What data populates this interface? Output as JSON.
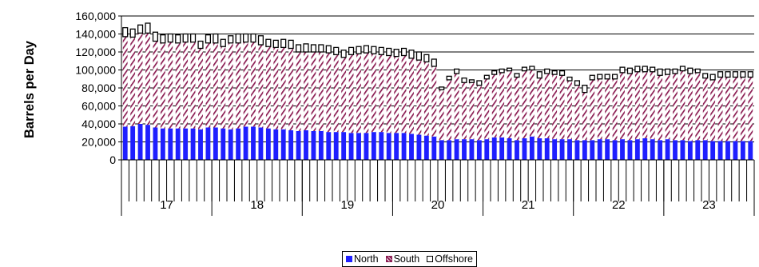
{
  "chart_data": {
    "type": "bar",
    "stacked": true,
    "ylabel": "Barrels per Day",
    "ylim": [
      0,
      160000
    ],
    "yticks": [
      "0",
      "20,000",
      "40,000",
      "60,000",
      "80,000",
      "100,000",
      "120,000",
      "140,000",
      "160,000"
    ],
    "grid": true,
    "legend_position": "bottom",
    "year_labels": [
      "17",
      "18",
      "19",
      "20",
      "21",
      "22",
      "23"
    ],
    "periods_per_year": 12,
    "series": [
      {
        "name": "North",
        "color": "#1f1fff",
        "pattern": "solid",
        "values": [
          37000,
          37500,
          40000,
          39000,
          36000,
          35000,
          35000,
          35000,
          35000,
          35000,
          34000,
          36000,
          36000,
          35000,
          34000,
          35000,
          37000,
          37000,
          36000,
          35000,
          34000,
          34000,
          33000,
          32000,
          33000,
          32000,
          32000,
          31000,
          31000,
          31000,
          30000,
          30000,
          30000,
          31000,
          31000,
          30000,
          30000,
          30000,
          29000,
          28000,
          27000,
          26000,
          22000,
          22000,
          23000,
          23000,
          23000,
          22000,
          23000,
          25000,
          25000,
          24000,
          22000,
          24000,
          26000,
          24000,
          24000,
          23000,
          23000,
          23000,
          22000,
          22000,
          22000,
          23000,
          23000,
          22000,
          23000,
          22000,
          23000,
          24000,
          23000,
          22000,
          23000,
          22000,
          22000,
          21000,
          22000,
          22000,
          21000,
          21000,
          21000,
          21000,
          21000,
          21000
        ]
      },
      {
        "name": "South",
        "color": "#8b1c52",
        "pattern": "hatched",
        "values": [
          100000,
          99000,
          101000,
          102000,
          96000,
          95000,
          96000,
          95000,
          96000,
          96000,
          90000,
          94000,
          94000,
          91000,
          96000,
          95000,
          94000,
          94000,
          92000,
          91000,
          91000,
          91000,
          91000,
          88000,
          87000,
          88000,
          88000,
          88000,
          86000,
          83000,
          87000,
          88000,
          89000,
          87000,
          86000,
          86000,
          85000,
          86000,
          84000,
          83000,
          82000,
          78000,
          56000,
          67000,
          73000,
          63000,
          63000,
          61000,
          67000,
          70000,
          72000,
          75000,
          70000,
          75000,
          74000,
          67000,
          72000,
          72000,
          71000,
          65000,
          61000,
          53000,
          67000,
          67000,
          67000,
          68000,
          74000,
          74000,
          75000,
          74000,
          75000,
          72000,
          72000,
          74000,
          77000,
          75000,
          75000,
          69000,
          68000,
          71000,
          71000,
          71000,
          71000,
          71000
        ]
      },
      {
        "name": "Offshore",
        "color": "#ffffff",
        "pattern": "outline",
        "values": [
          10000,
          9000,
          9000,
          11000,
          10000,
          9000,
          9000,
          9000,
          9000,
          9000,
          8000,
          9000,
          10000,
          8000,
          8000,
          10000,
          9000,
          9000,
          10000,
          8000,
          8000,
          9000,
          9000,
          8000,
          9000,
          8000,
          8000,
          8000,
          8000,
          8000,
          8000,
          8000,
          8000,
          8000,
          8000,
          8000,
          8000,
          8000,
          9000,
          9000,
          8000,
          8000,
          3000,
          4000,
          5000,
          5000,
          3000,
          5000,
          4000,
          4000,
          4000,
          3000,
          4000,
          4000,
          4000,
          7000,
          5000,
          4000,
          5000,
          4000,
          5000,
          8000,
          5000,
          5000,
          5000,
          5000,
          6000,
          6000,
          6000,
          6000,
          5000,
          7000,
          6000,
          5000,
          5000,
          6000,
          4000,
          5000,
          6000,
          6000,
          6000,
          6000,
          6000,
          6000
        ]
      }
    ]
  }
}
